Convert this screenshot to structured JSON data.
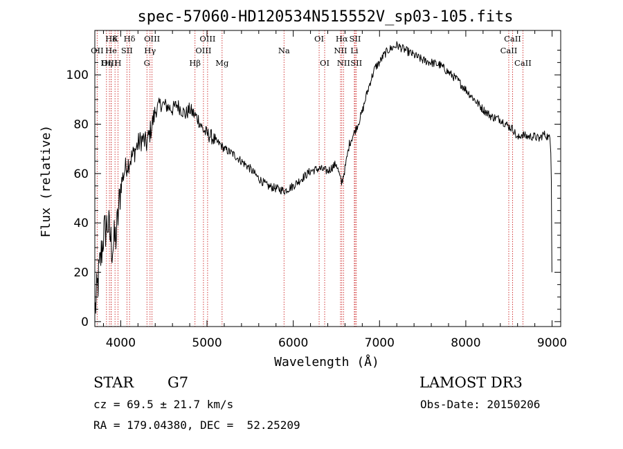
{
  "chart_data": {
    "type": "line",
    "title": "spec-57060-HD120534N515552V_sp03-105.fits",
    "xlabel": "Wavelength (Å)",
    "ylabel": "Flux (relative)",
    "xlim": [
      3700,
      9100
    ],
    "ylim": [
      -2,
      118
    ],
    "xticks": [
      4000,
      5000,
      6000,
      7000,
      8000,
      9000
    ],
    "xtick_labels": [
      "4000",
      "5000",
      "6000",
      "7000",
      "8000",
      "9000"
    ],
    "yticks": [
      0,
      20,
      40,
      60,
      80,
      100
    ],
    "ytick_labels": [
      "0",
      "20",
      "40",
      "60",
      "80",
      "100"
    ],
    "grid": false,
    "series": [
      {
        "name": "spectrum",
        "x": [
          3705,
          3750,
          3800,
          3850,
          3900,
          3950,
          4000,
          4050,
          4100,
          4150,
          4200,
          4250,
          4300,
          4350,
          4400,
          4450,
          4500,
          4550,
          4600,
          4650,
          4700,
          4750,
          4800,
          4850,
          4900,
          4950,
          5000,
          5050,
          5100,
          5150,
          5200,
          5300,
          5400,
          5500,
          5600,
          5700,
          5800,
          5900,
          6000,
          6100,
          6200,
          6300,
          6400,
          6500,
          6560,
          6600,
          6650,
          6700,
          6750,
          6800,
          6850,
          6900,
          6950,
          7000,
          7050,
          7100,
          7150,
          7200,
          7250,
          7300,
          7400,
          7500,
          7600,
          7700,
          7800,
          7900,
          8000,
          8100,
          8200,
          8300,
          8400,
          8500,
          8550,
          8600,
          8650,
          8700,
          8750,
          8800,
          8850,
          8900,
          8950,
          8975,
          8985,
          8992,
          8998
        ],
        "values": [
          5,
          20,
          35,
          40,
          30,
          35,
          55,
          62,
          65,
          68,
          72,
          74,
          72,
          78,
          85,
          88,
          88,
          87,
          86,
          88,
          86,
          84,
          86,
          84,
          82,
          78,
          76,
          75,
          73,
          72,
          70,
          68,
          65,
          62,
          58,
          55,
          54,
          53,
          55,
          58,
          61,
          62,
          61,
          64,
          56,
          62,
          72,
          76,
          80,
          85,
          92,
          98,
          103,
          105,
          108,
          110,
          111,
          112,
          111,
          110,
          108,
          106,
          105,
          104,
          101,
          98,
          94,
          90,
          86,
          83,
          82,
          79,
          78,
          74,
          76,
          75,
          75,
          75,
          74,
          76,
          75,
          74,
          70,
          58,
          20
        ]
      }
    ],
    "spectral_lines": [
      {
        "label": "Hδ",
        "wavelength": 3890,
        "row": 0
      },
      {
        "label": "K",
        "wavelength": 3934,
        "row": 0
      },
      {
        "label": "Hδ",
        "wavelength": 4102,
        "row": 0
      },
      {
        "label": "OIII",
        "wavelength": 4363,
        "row": 0
      },
      {
        "label": "OIII",
        "wavelength": 5007,
        "row": 0
      },
      {
        "label": "OI",
        "wavelength": 6300,
        "row": 0
      },
      {
        "label": "Hα",
        "wavelength": 6563,
        "row": 0
      },
      {
        "label": "SII",
        "wavelength": 6717,
        "row": 0
      },
      {
        "label": "CaII",
        "wavelength": 8542,
        "row": 0
      },
      {
        "label": "OII",
        "wavelength": 3727,
        "row": 1
      },
      {
        "label": "He",
        "wavelength": 3889,
        "row": 1
      },
      {
        "label": "SII",
        "wavelength": 4072,
        "row": 1
      },
      {
        "label": "Hγ",
        "wavelength": 4340,
        "row": 1
      },
      {
        "label": "OIII",
        "wavelength": 4959,
        "row": 1
      },
      {
        "label": "Na",
        "wavelength": 5893,
        "row": 1
      },
      {
        "label": "NII",
        "wavelength": 6548,
        "row": 1
      },
      {
        "label": "Li",
        "wavelength": 6708,
        "row": 1
      },
      {
        "label": "CaII",
        "wavelength": 8498,
        "row": 1
      },
      {
        "label": "OIII",
        "wavelength": 3869,
        "row": 2
      },
      {
        "label": "Hη",
        "wavelength": 3835,
        "row": 2
      },
      {
        "label": "H",
        "wavelength": 3968,
        "row": 2
      },
      {
        "label": "G",
        "wavelength": 4304,
        "row": 2
      },
      {
        "label": "Hβ",
        "wavelength": 4861,
        "row": 2
      },
      {
        "label": "Mg",
        "wavelength": 5175,
        "row": 2
      },
      {
        "label": "OI",
        "wavelength": 6364,
        "row": 2
      },
      {
        "label": "NII",
        "wavelength": 6583,
        "row": 2
      },
      {
        "label": "SII",
        "wavelength": 6731,
        "row": 2
      },
      {
        "label": "CaII",
        "wavelength": 8662,
        "row": 2
      }
    ]
  },
  "info": {
    "object_class": "STAR",
    "subclass": "G7",
    "survey": "LAMOST DR3",
    "cz": "cz = 69.5 ± 21.7 km/s",
    "obs_date": "Obs-Date: 20150206",
    "coords": "RA = 179.04380, DEC =  52.25209"
  },
  "colors": {
    "spectrum": "#000000",
    "line_markers": "#cc2222",
    "axes": "#000000"
  }
}
